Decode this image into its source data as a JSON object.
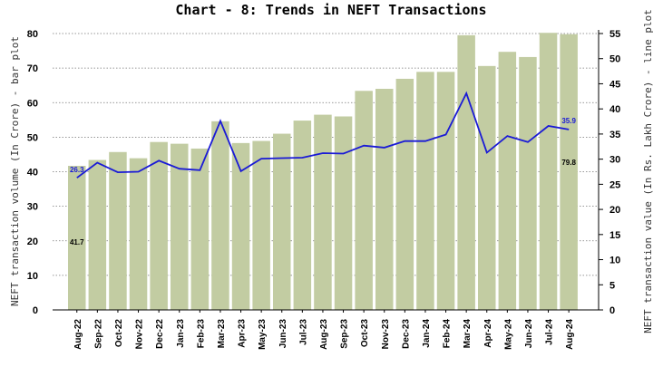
{
  "chart_data": {
    "type": "bar+line",
    "title": "Chart - 8: Trends in NEFT Transactions",
    "categories": [
      "Aug-22",
      "Sep-22",
      "Oct-22",
      "Nov-22",
      "Dec-22",
      "Jan-23",
      "Feb-23",
      "Mar-23",
      "Apr-23",
      "May-23",
      "Jun-23",
      "Jul-23",
      "Aug-23",
      "Sep-23",
      "Oct-23",
      "Nov-23",
      "Dec-23",
      "Jan-24",
      "Feb-24",
      "Mar-24",
      "Apr-24",
      "May-24",
      "Jun-24",
      "Jul-24",
      "Aug-24"
    ],
    "series": [
      {
        "type": "bar",
        "axis": "left",
        "color": "#c2cca2",
        "values": [
          41.7,
          43.4,
          45.7,
          43.9,
          48.6,
          48.1,
          46.7,
          54.6,
          48.3,
          48.9,
          51.0,
          54.8,
          56.5,
          56.0,
          63.4,
          64.0,
          66.9,
          68.9,
          68.9,
          79.5,
          70.6,
          74.7,
          73.2,
          80.2,
          79.8
        ]
      },
      {
        "type": "line",
        "axis": "right",
        "color": "#1a1ad6",
        "values": [
          26.3,
          29.3,
          27.4,
          27.5,
          29.7,
          28.1,
          27.8,
          37.6,
          27.6,
          30.1,
          30.2,
          30.3,
          31.2,
          31.1,
          32.7,
          32.3,
          33.6,
          33.6,
          34.9,
          43.1,
          31.3,
          34.6,
          33.4,
          36.6,
          35.9
        ]
      }
    ],
    "data_labels": {
      "bar_first": "41.7",
      "bar_last": "79.8",
      "line_first": "26.3",
      "line_last": "35.9"
    },
    "ylabel_left": "NEFT transaction volume (In Crore) - bar plot",
    "ylabel_right": "NEFT transaction value (In Rs. Lakh Crore) - line plot",
    "ylim_left": [
      0,
      80
    ],
    "yticks_left": [
      "0",
      "10",
      "20",
      "30",
      "40",
      "50",
      "60",
      "70",
      "80"
    ],
    "ylim_right": [
      0,
      55
    ],
    "yticks_right": [
      "0",
      "5",
      "10",
      "15",
      "20",
      "25",
      "30",
      "35",
      "40",
      "45",
      "50",
      "55"
    ],
    "grid": "horizontal dotted"
  }
}
